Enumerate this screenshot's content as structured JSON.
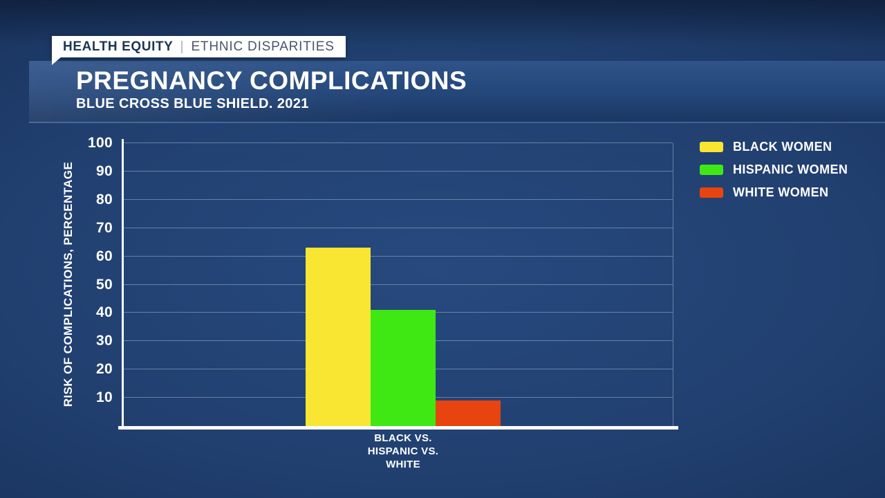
{
  "badge": {
    "primary": "HEALTH EQUITY",
    "separator": "|",
    "secondary": "ETHNIC DISPARITIES"
  },
  "header": {
    "title": "PREGNANCY COMPLICATIONS",
    "subtitle": "BLUE CROSS BLUE SHIELD. 2021"
  },
  "colors": {
    "background": "#1f3d6b",
    "band_top": "#2f538a",
    "band_bottom": "#1b3763",
    "badge_background": "#ffffff",
    "badge_primary_text": "#1e3452",
    "badge_secondary_text": "#47566c",
    "axis": "#ffffff",
    "gridline": "rgba(186,203,228,0.45)",
    "bar_black_women": "#f8e632",
    "bar_hispanic_women": "#3fe813",
    "bar_white_women": "#e8440f"
  },
  "chart_data": {
    "type": "bar",
    "title": "PREGNANCY COMPLICATIONS",
    "subtitle": "BLUE CROSS BLUE SHIELD. 2021",
    "ylabel": "RISK OF COMPLICATIONS, PERCENTAGE",
    "ylim": [
      0,
      100
    ],
    "yticks": [
      10,
      20,
      30,
      40,
      50,
      60,
      70,
      80,
      90,
      100
    ],
    "grid": true,
    "legend_position": "top-right",
    "categories": [
      "BLACK VS.\nHISPANIC VS.\nWHITE"
    ],
    "series": [
      {
        "name": "BLACK WOMEN",
        "color": "#f8e632",
        "values": [
          63
        ]
      },
      {
        "name": "HISPANIC WOMEN",
        "color": "#3fe813",
        "values": [
          41
        ]
      },
      {
        "name": "WHITE WOMEN",
        "color": "#e8440f",
        "values": [
          9
        ]
      }
    ]
  }
}
